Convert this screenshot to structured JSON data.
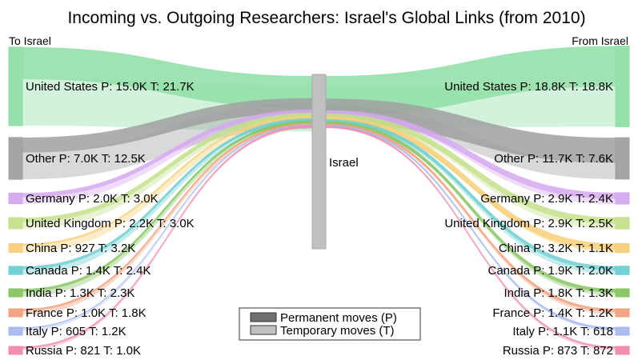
{
  "chart_data": {
    "type": "sankey",
    "title": "Incoming vs. Outgoing Researchers: Israel's Global Links (from 2010)",
    "left_header": "To Israel",
    "right_header": "From Israel",
    "center_node": "Israel",
    "legend": {
      "position": "bottom-center",
      "items": [
        {
          "label": "Permanent moves (P)",
          "color": "#707070"
        },
        {
          "label": "Temporary moves (T)",
          "color": "#c0c0c0"
        }
      ]
    },
    "incoming": [
      {
        "name": "United States",
        "label": "United States P: 15.0K  T: 21.7K",
        "p": 15000,
        "t": 21700,
        "color": "#8fdea6"
      },
      {
        "name": "Other",
        "label": "Other P: 7.0K  T: 12.5K",
        "p": 7000,
        "t": 12500,
        "color": "#a0a0a0"
      },
      {
        "name": "Germany",
        "label": "Germany P: 2.0K  T: 3.0K",
        "p": 2000,
        "t": 3000,
        "color": "#d5a8ee"
      },
      {
        "name": "United Kingdom",
        "label": "United Kingdom P: 2.2K  T: 3.0K",
        "p": 2200,
        "t": 3000,
        "color": "#c4e08a"
      },
      {
        "name": "China",
        "label": "China P: 927  T: 3.2K",
        "p": 927,
        "t": 3200,
        "color": "#f7cf78"
      },
      {
        "name": "Canada",
        "label": "Canada P: 1.4K  T: 2.4K",
        "p": 1400,
        "t": 2400,
        "color": "#6ccfd1"
      },
      {
        "name": "India",
        "label": "India P: 1.3K  T: 2.3K",
        "p": 1300,
        "t": 2300,
        "color": "#86c560"
      },
      {
        "name": "France",
        "label": "France P: 1.0K  T: 1.8K",
        "p": 1000,
        "t": 1800,
        "color": "#f2a07c"
      },
      {
        "name": "Italy",
        "label": "Italy P: 605  T: 1.2K",
        "p": 605,
        "t": 1200,
        "color": "#a6b8ee"
      },
      {
        "name": "Russia",
        "label": "Russia P: 821  T: 1.0K",
        "p": 821,
        "t": 1000,
        "color": "#f08aaa"
      }
    ],
    "outgoing": [
      {
        "name": "United States",
        "label": "United States P: 18.8K  T: 18.8K",
        "p": 18800,
        "t": 18800,
        "color": "#8fdea6"
      },
      {
        "name": "Other",
        "label": "Other P: 11.7K  T: 7.6K",
        "p": 11700,
        "t": 7600,
        "color": "#a0a0a0"
      },
      {
        "name": "Germany",
        "label": "Germany P: 2.9K  T: 2.4K",
        "p": 2900,
        "t": 2400,
        "color": "#d5a8ee"
      },
      {
        "name": "United Kingdom",
        "label": "United Kingdom P: 2.9K  T: 2.5K",
        "p": 2900,
        "t": 2500,
        "color": "#c4e08a"
      },
      {
        "name": "China",
        "label": "China P: 3.2K  T: 1.1K",
        "p": 3200,
        "t": 1100,
        "color": "#f7cf78"
      },
      {
        "name": "Canada",
        "label": "Canada P: 1.9K  T: 2.0K",
        "p": 1900,
        "t": 2000,
        "color": "#6ccfd1"
      },
      {
        "name": "India",
        "label": "India P: 1.8K  T: 1.3K",
        "p": 1800,
        "t": 1300,
        "color": "#86c560"
      },
      {
        "name": "France",
        "label": "France P: 1.4K  T: 1.2K",
        "p": 1400,
        "t": 1200,
        "color": "#f2a07c"
      },
      {
        "name": "Italy",
        "label": "Italy P: 1.1K  T: 618",
        "p": 1100,
        "t": 618,
        "color": "#a6b8ee"
      },
      {
        "name": "Russia",
        "label": "Russia P: 873  T: 872",
        "p": 873,
        "t": 872,
        "color": "#f08aaa"
      }
    ]
  }
}
